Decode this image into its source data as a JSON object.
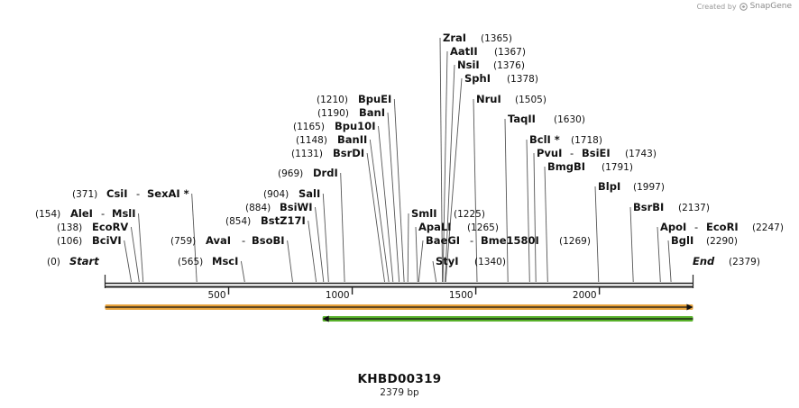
{
  "credit": {
    "prefix": "Created by",
    "brand": "SnapGene"
  },
  "map": {
    "name": "KHBD00319",
    "length_label": "2379 bp",
    "length": 2379,
    "start_label": "Start",
    "start_pos": "(0)",
    "end_label": "End",
    "end_pos": "(2379)",
    "ticks": [
      {
        "label": "500",
        "value": 500
      },
      {
        "label": "1000",
        "value": 1000
      },
      {
        "label": "1500",
        "value": 1500
      },
      {
        "label": "2000",
        "value": 2000
      }
    ],
    "features": [
      {
        "name": "orange-feature",
        "start": 0,
        "end": 2379,
        "direction": "forward",
        "color": "#e8a33c"
      },
      {
        "name": "green-feature",
        "start": 880,
        "end": 2379,
        "direction": "reverse",
        "color": "#58b12a"
      }
    ]
  },
  "sites": [
    {
      "id": "zrai",
      "label": "ZraI",
      "pos": "(1365)",
      "site": 1365,
      "pos_first": false
    },
    {
      "id": "aatii",
      "label": "AatII",
      "pos": "(1367)",
      "site": 1367,
      "pos_first": false
    },
    {
      "id": "nsii",
      "label": "NsiI",
      "pos": "(1376)",
      "site": 1376,
      "pos_first": false
    },
    {
      "id": "sphi",
      "label": "SphI",
      "pos": "(1378)",
      "site": 1378,
      "pos_first": false
    },
    {
      "id": "nrui",
      "label": "NruI",
      "pos": "(1505)",
      "site": 1505,
      "pos_first": false
    },
    {
      "id": "bpuei",
      "label": "BpuEI",
      "pos": "(1210)",
      "site": 1210,
      "pos_first": true
    },
    {
      "id": "bani",
      "label": "BanI",
      "pos": "(1190)",
      "site": 1190,
      "pos_first": true
    },
    {
      "id": "bpu10i",
      "label": "Bpu10I",
      "pos": "(1165)",
      "site": 1165,
      "pos_first": true
    },
    {
      "id": "banii",
      "label": "BanII",
      "pos": "(1148)",
      "site": 1148,
      "pos_first": true
    },
    {
      "id": "bsrdi",
      "label": "BsrDI",
      "pos": "(1131)",
      "site": 1131,
      "pos_first": true
    },
    {
      "id": "taqii",
      "label": "TaqII",
      "pos": "(1630)",
      "site": 1630,
      "pos_first": false
    },
    {
      "id": "bcli",
      "label": "BclI *",
      "pos": "(1718)",
      "site": 1718,
      "pos_first": false
    },
    {
      "id": "pvui",
      "label": "PvuI",
      "label2": "BsiEI",
      "pos": "(1743)",
      "site": 1743,
      "pos_first": false
    },
    {
      "id": "bmgbi",
      "label": "BmgBI",
      "pos": "(1791)",
      "site": 1791,
      "pos_first": false
    },
    {
      "id": "drdi",
      "label": "DrdI",
      "pos": "(969)",
      "site": 969,
      "pos_first": true
    },
    {
      "id": "blpi",
      "label": "BlpI",
      "pos": "(1997)",
      "site": 1997,
      "pos_first": false
    },
    {
      "id": "csii",
      "label": "CsiI",
      "label2": "SexAI *",
      "pos": "(371)",
      "site": 371,
      "pos_first": true
    },
    {
      "id": "sali",
      "label": "SalI",
      "pos": "(904)",
      "site": 904,
      "pos_first": true
    },
    {
      "id": "bsiwi",
      "label": "BsiWI",
      "pos": "(884)",
      "site": 884,
      "pos_first": true
    },
    {
      "id": "bsrbi",
      "label": "BsrBI",
      "pos": "(2137)",
      "site": 2137,
      "pos_first": false
    },
    {
      "id": "alei",
      "label": "AleI",
      "label2": "MslI",
      "pos": "(154)",
      "site": 154,
      "pos_first": true
    },
    {
      "id": "smli",
      "label": "SmlI",
      "pos": "(1225)",
      "site": 1225,
      "pos_first": false
    },
    {
      "id": "bstz17i",
      "label": "BstZ17I",
      "pos": "(854)",
      "site": 854,
      "pos_first": true
    },
    {
      "id": "ecorv",
      "label": "EcoRV",
      "pos": "(138)",
      "site": 138,
      "pos_first": true
    },
    {
      "id": "apali",
      "label": "ApaLI",
      "pos": "(1265)",
      "site": 1265,
      "pos_first": false
    },
    {
      "id": "apoi",
      "label": "ApoI",
      "label2": "EcoRI",
      "pos": "(2247)",
      "site": 2247,
      "pos_first": false
    },
    {
      "id": "bcivi",
      "label": "BciVI",
      "pos": "(106)",
      "site": 106,
      "pos_first": true
    },
    {
      "id": "avai",
      "label": "AvaI",
      "label2": "BsoBI",
      "pos": "(759)",
      "site": 759,
      "pos_first": true
    },
    {
      "id": "baegi",
      "label": "BaeGI",
      "label2": "Bme1580I",
      "pos": "(1269)",
      "site": 1269,
      "pos_first": false
    },
    {
      "id": "bgli",
      "label": "BglI",
      "pos": "(2290)",
      "site": 2290,
      "pos_first": false
    },
    {
      "id": "msci",
      "label": "MscI",
      "pos": "(565)",
      "site": 565,
      "pos_first": true
    },
    {
      "id": "styi",
      "label": "StyI",
      "pos": "(1340)",
      "site": 1340,
      "pos_first": false
    }
  ]
}
